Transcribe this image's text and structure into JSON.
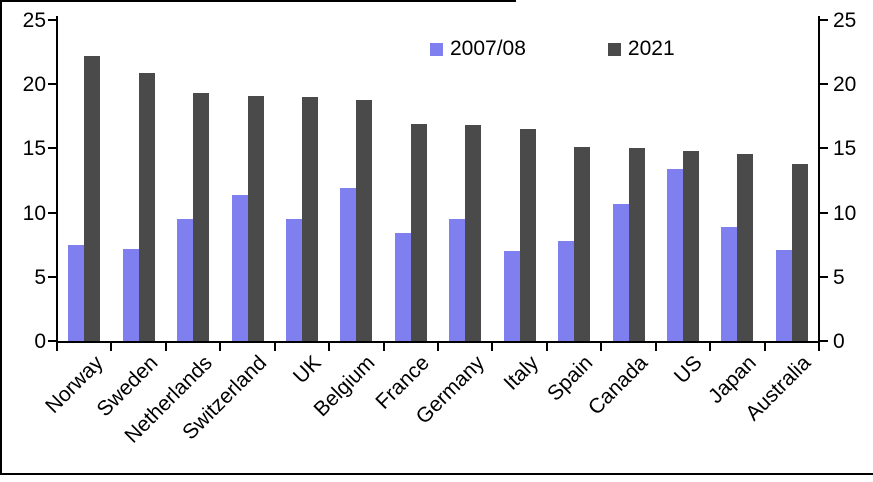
{
  "chart_data": {
    "type": "bar",
    "title": "",
    "xlabel": "",
    "ylabel": "",
    "categories": [
      "Norway",
      "Sweden",
      "Netherlands",
      "Switzerland",
      "UK",
      "Belgium",
      "France",
      "Germany",
      "Italy",
      "Spain",
      "Canada",
      "US",
      "Japan",
      "Australia"
    ],
    "series": [
      {
        "name": "2007/08",
        "color": "#7F7FEF",
        "values": [
          7.5,
          7.2,
          9.5,
          11.4,
          9.5,
          11.9,
          8.4,
          9.5,
          7.0,
          7.8,
          10.7,
          13.4,
          8.9,
          7.1
        ]
      },
      {
        "name": "2021",
        "color": "#4A4A4A",
        "values": [
          22.2,
          20.9,
          19.3,
          19.1,
          19.0,
          18.8,
          16.9,
          16.8,
          16.5,
          15.1,
          15.0,
          14.8,
          14.6,
          13.8
        ]
      }
    ],
    "ylim": [
      0,
      25
    ],
    "yticks": [
      0,
      5,
      10,
      15,
      20,
      25
    ],
    "y_axis_sides": [
      "left",
      "right"
    ],
    "legend_position": "top-center",
    "grid": false,
    "x_label_rotation_deg": 45
  },
  "frame": {
    "border_color": "#000000",
    "background": "#FFFFFF"
  }
}
